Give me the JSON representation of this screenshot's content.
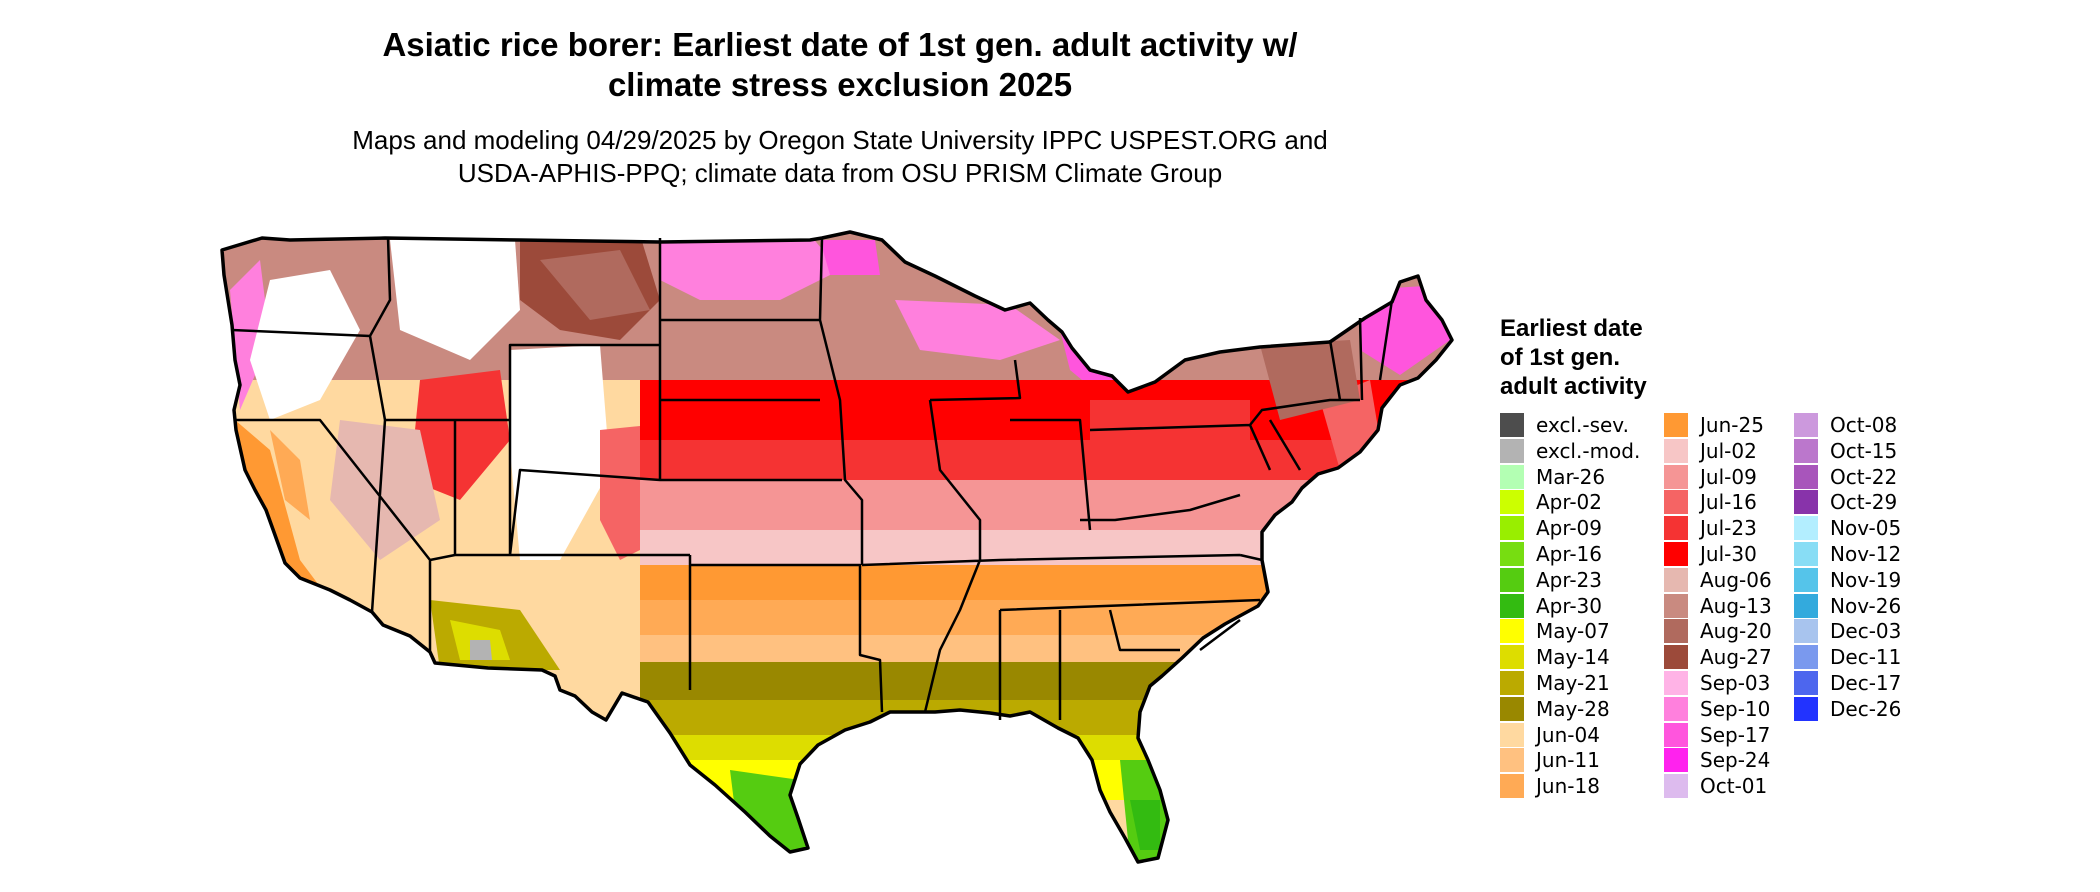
{
  "title_line1": "Asiatic rice borer: Earliest date of 1st gen. adult activity w/",
  "title_line2": "climate stress exclusion 2025",
  "subtitle_line1": "Maps and modeling 04/29/2025 by Oregon State University IPPC USPEST.ORG and",
  "subtitle_line2": "USDA-APHIS-PPQ; climate data from OSU PRISM Climate Group",
  "legend": {
    "title_lines": [
      "Earliest date",
      "of 1st gen.",
      "adult activity"
    ],
    "items": [
      {
        "label": "excl.-sev.",
        "color": "#4d4d4d"
      },
      {
        "label": "excl.-mod.",
        "color": "#b3b3b3"
      },
      {
        "label": "Mar-26",
        "color": "#b3ffb3"
      },
      {
        "label": "Apr-02",
        "color": "#ccff00"
      },
      {
        "label": "Apr-09",
        "color": "#99ee00"
      },
      {
        "label": "Apr-16",
        "color": "#77dd11"
      },
      {
        "label": "Apr-23",
        "color": "#55cc11"
      },
      {
        "label": "Apr-30",
        "color": "#33bb11"
      },
      {
        "label": "May-07",
        "color": "#ffff00"
      },
      {
        "label": "May-14",
        "color": "#dddd00"
      },
      {
        "label": "May-21",
        "color": "#bbaa00"
      },
      {
        "label": "May-28",
        "color": "#998800"
      },
      {
        "label": "Jun-04",
        "color": "#ffd9a0"
      },
      {
        "label": "Jun-11",
        "color": "#ffc180"
      },
      {
        "label": "Jun-18",
        "color": "#ffaa55"
      },
      {
        "label": "Jun-25",
        "color": "#ff9933"
      },
      {
        "label": "Jul-02",
        "color": "#f7c6c6"
      },
      {
        "label": "Jul-09",
        "color": "#f59595"
      },
      {
        "label": "Jul-16",
        "color": "#f56464"
      },
      {
        "label": "Jul-23",
        "color": "#f53333"
      },
      {
        "label": "Jul-30",
        "color": "#ff0000"
      },
      {
        "label": "Aug-06",
        "color": "#e6b8b0"
      },
      {
        "label": "Aug-13",
        "color": "#c98a80"
      },
      {
        "label": "Aug-20",
        "color": "#b06a5e"
      },
      {
        "label": "Aug-27",
        "color": "#9c4a3a"
      },
      {
        "label": "Sep-03",
        "color": "#ffb3e6"
      },
      {
        "label": "Sep-10",
        "color": "#ff80dd"
      },
      {
        "label": "Sep-17",
        "color": "#ff55dd"
      },
      {
        "label": "Sep-24",
        "color": "#ff22ee"
      },
      {
        "label": "Oct-01",
        "color": "#ddbbee"
      },
      {
        "label": "Oct-08",
        "color": "#cc99dd"
      },
      {
        "label": "Oct-15",
        "color": "#bb77cc"
      },
      {
        "label": "Oct-22",
        "color": "#a855bb"
      },
      {
        "label": "Oct-29",
        "color": "#8833aa"
      },
      {
        "label": "Nov-05",
        "color": "#b3eeff"
      },
      {
        "label": "Nov-12",
        "color": "#88ddf5"
      },
      {
        "label": "Nov-19",
        "color": "#55c4ea"
      },
      {
        "label": "Nov-26",
        "color": "#33aadd"
      },
      {
        "label": "Dec-03",
        "color": "#a8c4ee"
      },
      {
        "label": "Dec-11",
        "color": "#7a99ee"
      },
      {
        "label": "Dec-17",
        "color": "#4d66ee"
      },
      {
        "label": "Dec-26",
        "color": "#2233ff"
      }
    ]
  }
}
